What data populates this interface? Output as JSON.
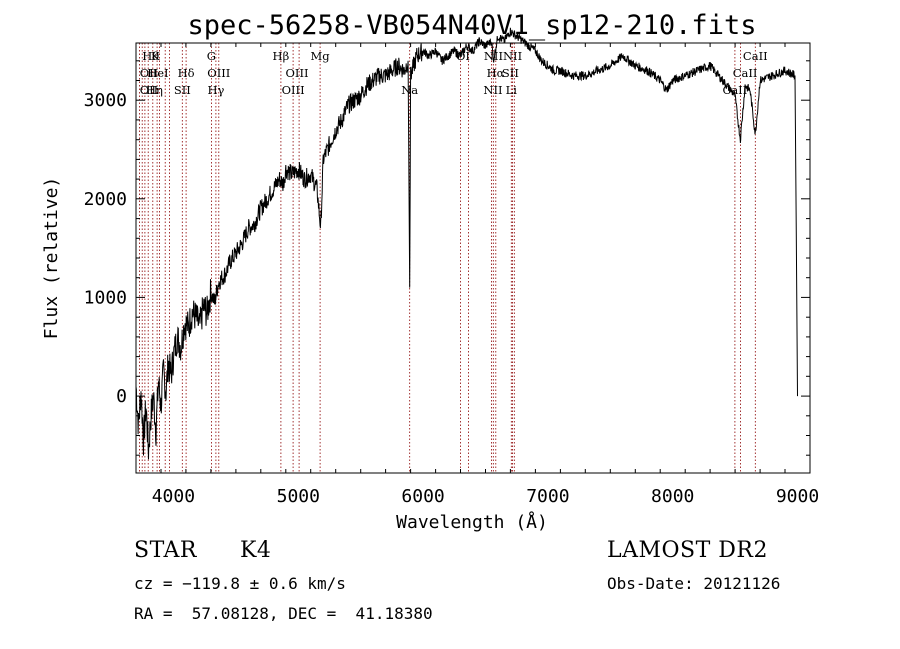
{
  "chart_data": {
    "type": "line",
    "title": "spec-56258-VB054N40V1_sp12-210.fits",
    "xlabel": "Wavelength (Å)",
    "ylabel": "Flux (relative)",
    "xlim": [
      3700,
      9100
    ],
    "ylim": [
      -780,
      3580
    ],
    "x_ticks": [
      4000,
      5000,
      6000,
      7000,
      8000,
      9000
    ],
    "y_ticks": [
      0,
      1000,
      2000,
      3000
    ],
    "x_tick_labels": [
      "4000",
      "5000",
      "6000",
      "7000",
      "8000",
      "9000"
    ],
    "y_tick_labels": [
      "0",
      "1000",
      "2000",
      "3000"
    ],
    "grid": false,
    "series_color": "#000000",
    "line_marker_color": "#8b0000",
    "x": [
      3700,
      3720,
      3740,
      3760,
      3780,
      3800,
      3820,
      3840,
      3860,
      3880,
      3900,
      3920,
      3940,
      3960,
      3980,
      4000,
      4030,
      4060,
      4090,
      4120,
      4150,
      4180,
      4210,
      4240,
      4270,
      4300,
      4330,
      4360,
      4390,
      4420,
      4450,
      4500,
      4550,
      4600,
      4650,
      4700,
      4750,
      4800,
      4850,
      4880,
      4900,
      4950,
      5000,
      5050,
      5100,
      5150,
      5180,
      5200,
      5250,
      5300,
      5350,
      5400,
      5450,
      5500,
      5550,
      5600,
      5650,
      5700,
      5750,
      5800,
      5850,
      5880,
      5893,
      5900,
      5950,
      6000,
      6050,
      6100,
      6150,
      6200,
      6250,
      6300,
      6350,
      6400,
      6450,
      6500,
      6550,
      6563,
      6600,
      6650,
      6700,
      6750,
      6800,
      6850,
      6900,
      6950,
      7000,
      7050,
      7100,
      7200,
      7300,
      7400,
      7500,
      7600,
      7700,
      7800,
      7900,
      7950,
      8000,
      8100,
      8200,
      8300,
      8400,
      8498,
      8542,
      8580,
      8620,
      8662,
      8700,
      8800,
      8900,
      8980,
      9000
    ],
    "y": [
      100,
      -300,
      50,
      -450,
      -100,
      -550,
      -200,
      0,
      -350,
      150,
      -100,
      250,
      50,
      350,
      200,
      400,
      600,
      500,
      750,
      700,
      850,
      800,
      700,
      900,
      850,
      1050,
      950,
      1150,
      1200,
      1250,
      1350,
      1450,
      1550,
      1700,
      1750,
      1900,
      2000,
      2100,
      2200,
      2150,
      2300,
      2250,
      2300,
      2200,
      2250,
      2100,
      1700,
      2400,
      2550,
      2700,
      2800,
      2950,
      3000,
      3050,
      3150,
      3200,
      3250,
      3250,
      3300,
      3350,
      3300,
      3400,
      1100,
      3250,
      3450,
      3500,
      3450,
      3500,
      3400,
      3450,
      3500,
      3450,
      3550,
      3500,
      3600,
      3550,
      3600,
      3400,
      3650,
      3600,
      3700,
      3650,
      3600,
      3550,
      3500,
      3400,
      3350,
      3300,
      3300,
      3250,
      3250,
      3300,
      3350,
      3450,
      3350,
      3300,
      3200,
      3100,
      3200,
      3250,
      3300,
      3350,
      3200,
      3050,
      2600,
      3150,
      3100,
      2650,
      3200,
      3250,
      3300,
      3250,
      0
    ],
    "annotations": [
      {
        "x": 3750,
        "label": "Hθ",
        "row": 0,
        "align": "start"
      },
      {
        "x": 3820,
        "label": "K",
        "row": 0,
        "align": "start"
      },
      {
        "x": 3730,
        "label": "OII",
        "row": 1,
        "align": "start"
      },
      {
        "x": 3790,
        "label": "HeI",
        "row": 1,
        "align": "start"
      },
      {
        "x": 4101,
        "label": "Hδ",
        "row": 1,
        "align": "middle"
      },
      {
        "x": 3730,
        "label": "OII",
        "row": 2,
        "align": "start"
      },
      {
        "x": 3780,
        "label": "Hη",
        "row": 2,
        "align": "start"
      },
      {
        "x": 4071,
        "label": "SII",
        "row": 2,
        "align": "middle"
      },
      {
        "x": 4304,
        "label": "G",
        "row": 0,
        "align": "middle"
      },
      {
        "x": 4363,
        "label": "OIII",
        "row": 1,
        "align": "middle"
      },
      {
        "x": 4340,
        "label": "Hγ",
        "row": 2,
        "align": "middle"
      },
      {
        "x": 4861,
        "label": "Hβ",
        "row": 0,
        "align": "middle"
      },
      {
        "x": 4990,
        "label": "OIII",
        "row": 1,
        "align": "middle"
      },
      {
        "x": 4959,
        "label": "OIII",
        "row": 2,
        "align": "middle"
      },
      {
        "x": 5175,
        "label": "Mg",
        "row": 0,
        "align": "middle"
      },
      {
        "x": 5893,
        "label": "Na",
        "row": 3,
        "align": "middle"
      },
      {
        "x": 6320,
        "label": "OI",
        "row": 0,
        "align": "middle"
      },
      {
        "x": 6640,
        "label": "NIINII",
        "row": 0,
        "align": "middle"
      },
      {
        "x": 6580,
        "label": "Hα",
        "row": 1,
        "align": "middle"
      },
      {
        "x": 6700,
        "label": "SII",
        "row": 1,
        "align": "middle"
      },
      {
        "x": 6560,
        "label": "NII",
        "row": 2,
        "align": "middle"
      },
      {
        "x": 6707,
        "label": "Li",
        "row": 2,
        "align": "middle"
      },
      {
        "x": 8662,
        "label": "CaII",
        "row": 0,
        "align": "middle"
      },
      {
        "x": 8580,
        "label": "CaII",
        "row": 1,
        "align": "middle"
      },
      {
        "x": 8498,
        "label": "CaII",
        "row": 2,
        "align": "middle"
      }
    ],
    "line_markers": [
      3727,
      3750,
      3771,
      3798,
      3835,
      3869,
      3889,
      3934,
      3969,
      4071,
      4101,
      4304,
      4340,
      4363,
      4861,
      4959,
      5007,
      5175,
      5893,
      6300,
      6364,
      6548,
      6563,
      6583,
      6707,
      6717,
      6731,
      8498,
      8542,
      8662
    ]
  },
  "info": {
    "object_type": "STAR",
    "subclass": "K4",
    "survey": "LAMOST DR2",
    "redshift": "cz = −119.8 ± 0.6 km/s",
    "obs_date": "Obs-Date: 20121126",
    "coords": "RA =  57.08128, DEC =  41.18380"
  }
}
